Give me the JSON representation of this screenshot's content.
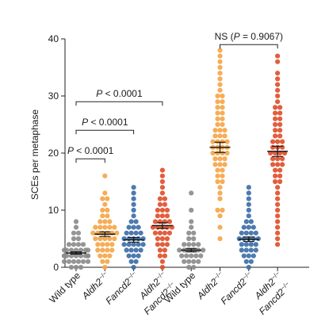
{
  "chart_data": {
    "type": "scatter",
    "subtype": "dot-plot-with-mean-and-error",
    "ylabel": "SCEs per metaphase",
    "ylim": [
      0,
      40
    ],
    "yticks": [
      0,
      10,
      20,
      30,
      40
    ],
    "grid": false,
    "categories": [
      {
        "parts": [
          {
            "t": "Wild type"
          }
        ]
      },
      {
        "parts": [
          {
            "t": "Aldh2",
            "italic": true
          },
          {
            "t": "−/−",
            "sup": true
          }
        ]
      },
      {
        "parts": [
          {
            "t": "Fancd2",
            "italic": true
          },
          {
            "t": "−/−",
            "sup": true
          }
        ]
      },
      {
        "parts": [
          {
            "t": "Aldh2",
            "italic": true
          },
          {
            "t": "−/−",
            "sup": true
          }
        ],
        "parts2": [
          {
            "t": "Fancd2",
            "italic": true
          },
          {
            "t": "−/−",
            "sup": true
          }
        ]
      },
      {
        "parts": [
          {
            "t": "Wild type"
          }
        ]
      },
      {
        "parts": [
          {
            "t": "Aldh2",
            "italic": true
          },
          {
            "t": "−/−",
            "sup": true
          }
        ]
      },
      {
        "parts": [
          {
            "t": "Fancd2",
            "italic": true
          },
          {
            "t": "−/−",
            "sup": true
          }
        ]
      },
      {
        "parts": [
          {
            "t": "Aldh2",
            "italic": true
          },
          {
            "t": "−/−",
            "sup": true
          }
        ],
        "parts2": [
          {
            "t": "Fancd2",
            "italic": true
          },
          {
            "t": "−/−",
            "sup": true
          }
        ]
      }
    ],
    "groups": [
      {
        "color": "#8c8c8c",
        "mean": 2.5,
        "sem": 0.2,
        "values": [
          0,
          0,
          0,
          1,
          1,
          1,
          1,
          1,
          1,
          2,
          2,
          2,
          2,
          2,
          2,
          2,
          2,
          2,
          3,
          3,
          3,
          3,
          3,
          3,
          3,
          4,
          4,
          4,
          4,
          5,
          5,
          6,
          6,
          7,
          8
        ]
      },
      {
        "color": "#f5a64a",
        "mean": 5.8,
        "sem": 0.4,
        "values": [
          0,
          1,
          1,
          2,
          2,
          2,
          3,
          3,
          3,
          3,
          4,
          4,
          4,
          4,
          5,
          5,
          5,
          5,
          5,
          6,
          6,
          6,
          6,
          6,
          6,
          7,
          7,
          7,
          7,
          7,
          8,
          8,
          8,
          9,
          9,
          10,
          10,
          11,
          12,
          12,
          13,
          16
        ]
      },
      {
        "color": "#3f6fa8",
        "mean": 4.8,
        "sem": 0.4,
        "values": [
          0,
          1,
          1,
          2,
          2,
          2,
          3,
          3,
          3,
          3,
          4,
          4,
          4,
          4,
          4,
          5,
          5,
          5,
          5,
          5,
          6,
          6,
          6,
          6,
          7,
          7,
          7,
          8,
          8,
          9,
          10,
          11,
          12,
          13,
          14
        ]
      },
      {
        "color": "#e0502c",
        "mean": 7.3,
        "sem": 0.5,
        "values": [
          0,
          1,
          2,
          2,
          3,
          3,
          4,
          4,
          4,
          5,
          5,
          5,
          6,
          6,
          6,
          6,
          7,
          7,
          7,
          7,
          7,
          8,
          8,
          8,
          8,
          9,
          9,
          9,
          10,
          10,
          10,
          11,
          11,
          12,
          12,
          13,
          14,
          15,
          16,
          17
        ]
      },
      {
        "color": "#8c8c8c",
        "mean": 3.0,
        "sem": 0.3,
        "values": [
          0,
          0,
          1,
          1,
          1,
          1,
          2,
          2,
          2,
          2,
          2,
          3,
          3,
          3,
          3,
          3,
          3,
          4,
          4,
          4,
          4,
          5,
          5,
          6,
          6,
          7,
          8,
          10,
          13
        ]
      },
      {
        "color": "#f5a64a",
        "mean": 21.0,
        "sem": 0.9,
        "values": [
          5,
          7,
          9,
          10,
          10,
          12,
          13,
          14,
          15,
          15,
          16,
          16,
          17,
          17,
          18,
          18,
          18,
          19,
          19,
          19,
          20,
          20,
          20,
          20,
          21,
          21,
          21,
          21,
          22,
          22,
          22,
          22,
          23,
          23,
          23,
          24,
          24,
          24,
          25,
          25,
          26,
          26,
          27,
          27,
          28,
          28,
          29,
          29,
          30,
          30,
          31,
          32,
          33,
          34,
          35,
          36,
          37,
          38
        ]
      },
      {
        "color": "#3f6fa8",
        "mean": 4.9,
        "sem": 0.4,
        "values": [
          0,
          1,
          1,
          2,
          2,
          2,
          3,
          3,
          3,
          3,
          4,
          4,
          4,
          4,
          5,
          5,
          5,
          5,
          5,
          6,
          6,
          6,
          6,
          7,
          7,
          7,
          8,
          8,
          9,
          10,
          11,
          12,
          13,
          14
        ]
      },
      {
        "color": "#e0502c",
        "mean": 20.3,
        "sem": 0.9,
        "values": [
          4,
          5,
          6,
          7,
          8,
          9,
          10,
          11,
          12,
          13,
          14,
          15,
          15,
          16,
          16,
          17,
          17,
          18,
          18,
          18,
          19,
          19,
          19,
          20,
          20,
          20,
          20,
          21,
          21,
          21,
          22,
          22,
          22,
          23,
          23,
          24,
          24,
          25,
          25,
          26,
          26,
          27,
          27,
          28,
          28,
          29,
          30,
          31,
          32,
          33,
          34,
          36,
          37
        ]
      }
    ],
    "annotations": [
      {
        "from": 0,
        "to": 3,
        "y": 29,
        "label": {
          "italic": "P",
          "rest": " < 0.0001"
        }
      },
      {
        "from": 0,
        "to": 2,
        "y": 24,
        "label": {
          "italic": "P",
          "rest": " < 0.0001"
        }
      },
      {
        "from": 0,
        "to": 1,
        "y": 19,
        "label": {
          "italic": "P",
          "rest": " < 0.0001"
        }
      },
      {
        "from": 5,
        "to": 7,
        "y": 39,
        "label": {
          "plain": "NS (",
          "italic": "P",
          "rest": " = 0.9067)"
        }
      }
    ]
  }
}
